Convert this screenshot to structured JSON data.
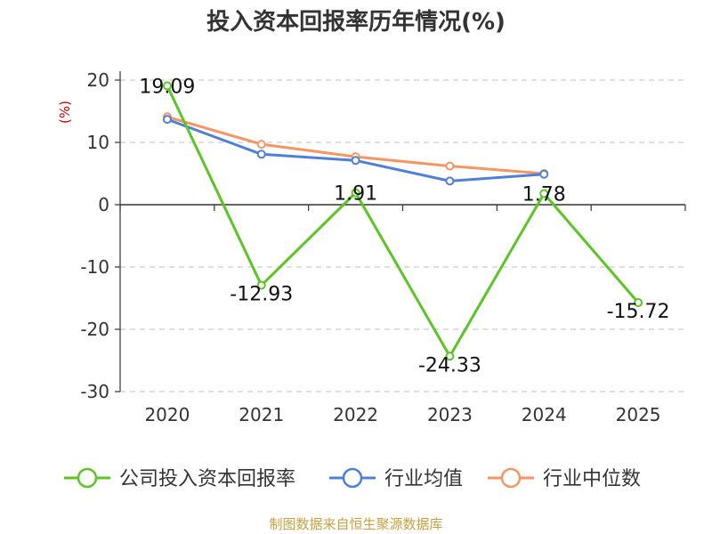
{
  "chart_data": {
    "type": "line",
    "title": "投入资本回报率历年情况(%)",
    "ylabel": "(%)",
    "xlabel": "",
    "categories": [
      "2020",
      "2021",
      "2022",
      "2023",
      "2024",
      "2025"
    ],
    "ylim": [
      -30,
      20
    ],
    "yticks": [
      20,
      10,
      0,
      -10,
      -20,
      -30
    ],
    "grid": true,
    "legend_position": "bottom",
    "series": [
      {
        "name": "公司投入资本回报率",
        "color": "#5cc425",
        "values": [
          19.09,
          -12.93,
          1.91,
          -24.33,
          1.78,
          -15.72
        ],
        "labels": [
          "19.09",
          "-12.93",
          "1.91",
          "-24.33",
          "1.78",
          "-15.72"
        ]
      },
      {
        "name": "行业均值",
        "color": "#4f80d8",
        "values": [
          13.7,
          8.1,
          7.1,
          3.8,
          4.9,
          null
        ]
      },
      {
        "name": "行业中位数",
        "color": "#f59562",
        "values": [
          14.1,
          9.7,
          7.7,
          6.2,
          5.0,
          null
        ]
      }
    ],
    "source": "制图数据来自恒生聚源数据库"
  }
}
